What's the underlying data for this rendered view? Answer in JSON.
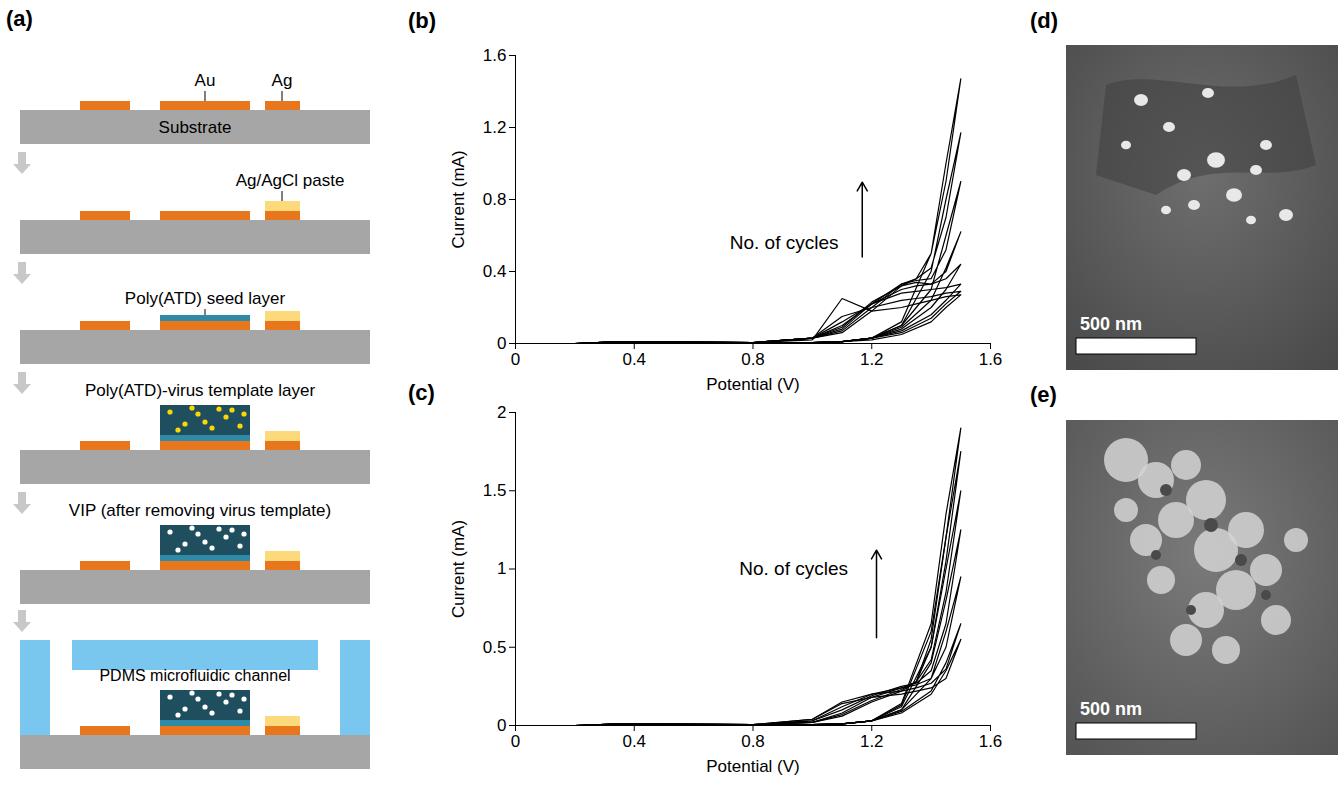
{
  "schematic": {
    "panel": "(a)",
    "labels": {
      "au": "Au",
      "ag": "Ag",
      "substrate": "Substrate",
      "paste": "Ag/AgCl paste",
      "seed": "Poly(ATD) seed layer",
      "template": "Poly(ATD)-virus template layer",
      "vip": "VIP (after removing virus template)",
      "pdms": "PDMS microfluidic channel"
    }
  },
  "chart_data": [
    {
      "panel": "(b)",
      "type": "line",
      "xlabel": "Potential (V)",
      "ylabel": "Current (mA)",
      "annotation": "No. of cycles",
      "color": "#000000",
      "xlim": [
        0,
        1.6
      ],
      "xticks": [
        0,
        0.4,
        0.8,
        1.2,
        1.6
      ],
      "ylim": [
        0,
        1.6
      ],
      "yticks": [
        0,
        0.4,
        0.8,
        1.2,
        1.6
      ],
      "x": [
        0.2,
        0.35,
        0.8,
        1.0,
        1.1,
        1.2,
        1.3,
        1.35,
        1.4,
        1.45,
        1.5,
        1.45,
        1.4,
        1.3,
        1.2,
        1.1,
        1.0,
        0.6,
        0.2
      ],
      "series": [
        {
          "values": [
            0,
            0.01,
            0.005,
            0.02,
            0.25,
            0.18,
            0.2,
            0.22,
            0.24,
            0.26,
            0.27,
            0.2,
            0.12,
            0.05,
            0.02,
            0.01,
            0.005,
            0,
            0
          ]
        },
        {
          "values": [
            0,
            0.01,
            0.005,
            0.03,
            0.15,
            0.2,
            0.24,
            0.25,
            0.26,
            0.28,
            0.29,
            0.22,
            0.14,
            0.06,
            0.03,
            0.01,
            0.005,
            0,
            0
          ]
        },
        {
          "values": [
            0,
            0.01,
            0.005,
            0.03,
            0.12,
            0.22,
            0.28,
            0.29,
            0.3,
            0.31,
            0.33,
            0.24,
            0.16,
            0.07,
            0.03,
            0.01,
            0.005,
            0,
            0
          ]
        },
        {
          "values": [
            0,
            0.01,
            0.005,
            0.03,
            0.1,
            0.22,
            0.3,
            0.32,
            0.33,
            0.36,
            0.44,
            0.3,
            0.2,
            0.08,
            0.03,
            0.01,
            0.005,
            0,
            0
          ]
        },
        {
          "values": [
            0,
            0.01,
            0.005,
            0.03,
            0.09,
            0.23,
            0.32,
            0.34,
            0.33,
            0.4,
            0.62,
            0.42,
            0.24,
            0.09,
            0.03,
            0.01,
            0.005,
            0,
            0
          ]
        },
        {
          "values": [
            0,
            0.01,
            0.005,
            0.03,
            0.08,
            0.22,
            0.33,
            0.35,
            0.36,
            0.52,
            0.9,
            0.6,
            0.3,
            0.1,
            0.03,
            0.01,
            0.005,
            0,
            0
          ]
        },
        {
          "values": [
            0,
            0.01,
            0.005,
            0.03,
            0.07,
            0.2,
            0.33,
            0.36,
            0.42,
            0.7,
            1.17,
            0.8,
            0.4,
            0.1,
            0.03,
            0.01,
            0.005,
            0,
            0
          ]
        },
        {
          "values": [
            0,
            0.01,
            0.005,
            0.03,
            0.06,
            0.18,
            0.32,
            0.36,
            0.5,
            0.9,
            1.47,
            1.0,
            0.5,
            0.12,
            0.03,
            0.01,
            0.005,
            0,
            0
          ]
        }
      ]
    },
    {
      "panel": "(c)",
      "type": "line",
      "xlabel": "Potential (V)",
      "ylabel": "Current (mA)",
      "annotation": "No. of cycles",
      "color": "#000000",
      "xlim": [
        0,
        1.6
      ],
      "xticks": [
        0,
        0.4,
        0.8,
        1.2,
        1.6
      ],
      "ylim": [
        0,
        2
      ],
      "yticks": [
        0,
        0.5,
        1,
        1.5,
        2
      ],
      "x": [
        0.2,
        0.35,
        0.8,
        1.0,
        1.1,
        1.2,
        1.3,
        1.35,
        1.4,
        1.45,
        1.5,
        1.45,
        1.4,
        1.3,
        1.2,
        1.1,
        1.0,
        0.6,
        0.2
      ],
      "series": [
        {
          "values": [
            0,
            0.01,
            0.005,
            0.04,
            0.14,
            0.18,
            0.2,
            0.22,
            0.24,
            0.3,
            0.55,
            0.35,
            0.2,
            0.08,
            0.03,
            0.01,
            0.005,
            0,
            0
          ]
        },
        {
          "values": [
            0,
            0.01,
            0.005,
            0.04,
            0.15,
            0.2,
            0.22,
            0.24,
            0.27,
            0.36,
            0.65,
            0.4,
            0.22,
            0.09,
            0.03,
            0.01,
            0.005,
            0,
            0
          ]
        },
        {
          "values": [
            0,
            0.01,
            0.005,
            0.03,
            0.12,
            0.2,
            0.24,
            0.26,
            0.3,
            0.5,
            0.95,
            0.6,
            0.3,
            0.1,
            0.03,
            0.01,
            0.005,
            0,
            0
          ]
        },
        {
          "values": [
            0,
            0.01,
            0.005,
            0.03,
            0.1,
            0.19,
            0.25,
            0.27,
            0.35,
            0.65,
            1.25,
            0.8,
            0.4,
            0.1,
            0.03,
            0.01,
            0.005,
            0,
            0
          ]
        },
        {
          "values": [
            0,
            0.01,
            0.005,
            0.02,
            0.08,
            0.18,
            0.24,
            0.28,
            0.42,
            0.85,
            1.5,
            1.0,
            0.5,
            0.12,
            0.03,
            0.01,
            0.005,
            0,
            0
          ]
        },
        {
          "values": [
            0,
            0.01,
            0.005,
            0.02,
            0.07,
            0.16,
            0.23,
            0.28,
            0.5,
            1.05,
            1.75,
            1.2,
            0.6,
            0.13,
            0.03,
            0.01,
            0.005,
            0,
            0
          ]
        },
        {
          "values": [
            0,
            0.01,
            0.005,
            0.02,
            0.06,
            0.15,
            0.22,
            0.28,
            0.55,
            1.2,
            1.9,
            1.35,
            0.65,
            0.14,
            0.03,
            0.01,
            0.005,
            0,
            0
          ]
        }
      ]
    }
  ],
  "images": [
    {
      "panel": "(d)",
      "scale_bar": "500 nm"
    },
    {
      "panel": "(e)",
      "scale_bar": "500 nm"
    }
  ]
}
